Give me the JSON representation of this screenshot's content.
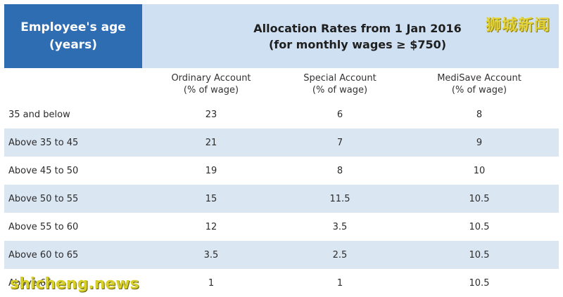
{
  "header": {
    "age_line1": "Employee's age",
    "age_line2": "(years)",
    "rates_line1": "Allocation Rates from 1 Jan 2016",
    "rates_line2": "(for monthly wages ≥ $750)"
  },
  "columns": [
    {
      "line1": "Ordinary Account",
      "line2": "(% of wage)"
    },
    {
      "line1": "Special Account",
      "line2": "(% of wage)"
    },
    {
      "line1": "MediSave Account",
      "line2": "(% of wage)"
    }
  ],
  "rows": [
    {
      "age": "35 and below",
      "oa": "23",
      "sa": "6",
      "ms": "8"
    },
    {
      "age": "Above 35 to 45",
      "oa": "21",
      "sa": "7",
      "ms": "9"
    },
    {
      "age": "Above 45 to 50",
      "oa": "19",
      "sa": "8",
      "ms": "10"
    },
    {
      "age": "Above 50 to 55",
      "oa": "15",
      "sa": "11.5",
      "ms": "10.5"
    },
    {
      "age": "Above 55 to 60",
      "oa": "12",
      "sa": "3.5",
      "ms": "10.5"
    },
    {
      "age": "Above 60 to 65",
      "oa": "3.5",
      "sa": "2.5",
      "ms": "10.5"
    },
    {
      "age": "Above 65",
      "oa": "1",
      "sa": "1",
      "ms": "10.5"
    }
  ],
  "watermarks": {
    "top_right": "狮城新闻",
    "bottom_left": "shicheng.news"
  },
  "colors": {
    "age_header_bg": "#2f6db3",
    "rates_header_bg": "#cfe0f2",
    "alt_row_bg": "#dbe6f3"
  }
}
